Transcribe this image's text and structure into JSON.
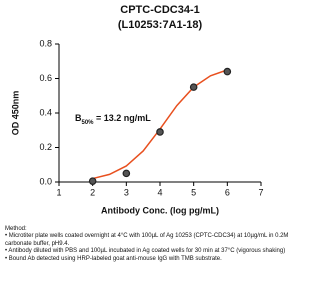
{
  "chart_data": {
    "type": "scatter",
    "title": "CPTC-CDC34-1",
    "subtitle": "(L10253:7A1-18)",
    "x_label": "Antibody Conc. (log pg/mL)",
    "y_label": "OD 450nm",
    "x": [
      2,
      3,
      4,
      5,
      6
    ],
    "values": [
      0.005,
      0.05,
      0.29,
      0.55,
      0.64
    ],
    "color": "#222222",
    "fit": {
      "color": "#e8501f",
      "x": [
        2,
        2.5,
        3,
        3.5,
        4,
        4.5,
        5,
        5.5,
        6
      ],
      "values": [
        0.02,
        0.044,
        0.093,
        0.18,
        0.307,
        0.443,
        0.55,
        0.616,
        0.65
      ]
    },
    "annotation": {
      "base": "B",
      "sub": "50%",
      "text": " = 13.2 ng/mL"
    },
    "xlim": [
      1,
      7
    ],
    "xticks": [
      1,
      2,
      3,
      4,
      5,
      6,
      7
    ],
    "ylim": [
      0,
      0.8
    ],
    "yticks": [
      {
        "value": 0,
        "label": "0.0"
      },
      0.2,
      0.4,
      0.6,
      0.8
    ]
  },
  "notes": {
    "heading": "Method:",
    "items": [
      "• Microtiter plate wells coated overnight at 4°C  with 100µL of Ag 10253 (CPTC-CDC34) at 10µg/mL in 0.2M carbonate buffer, pH9.4.",
      "• Antibody diluted with PBS and 100µL incubated in Ag coated wells for 30 min at 37°C (vigorous shaking)",
      "• Bound Ab detected using HRP-labeled goat anti-mouse IgG with TMB substrate."
    ]
  }
}
